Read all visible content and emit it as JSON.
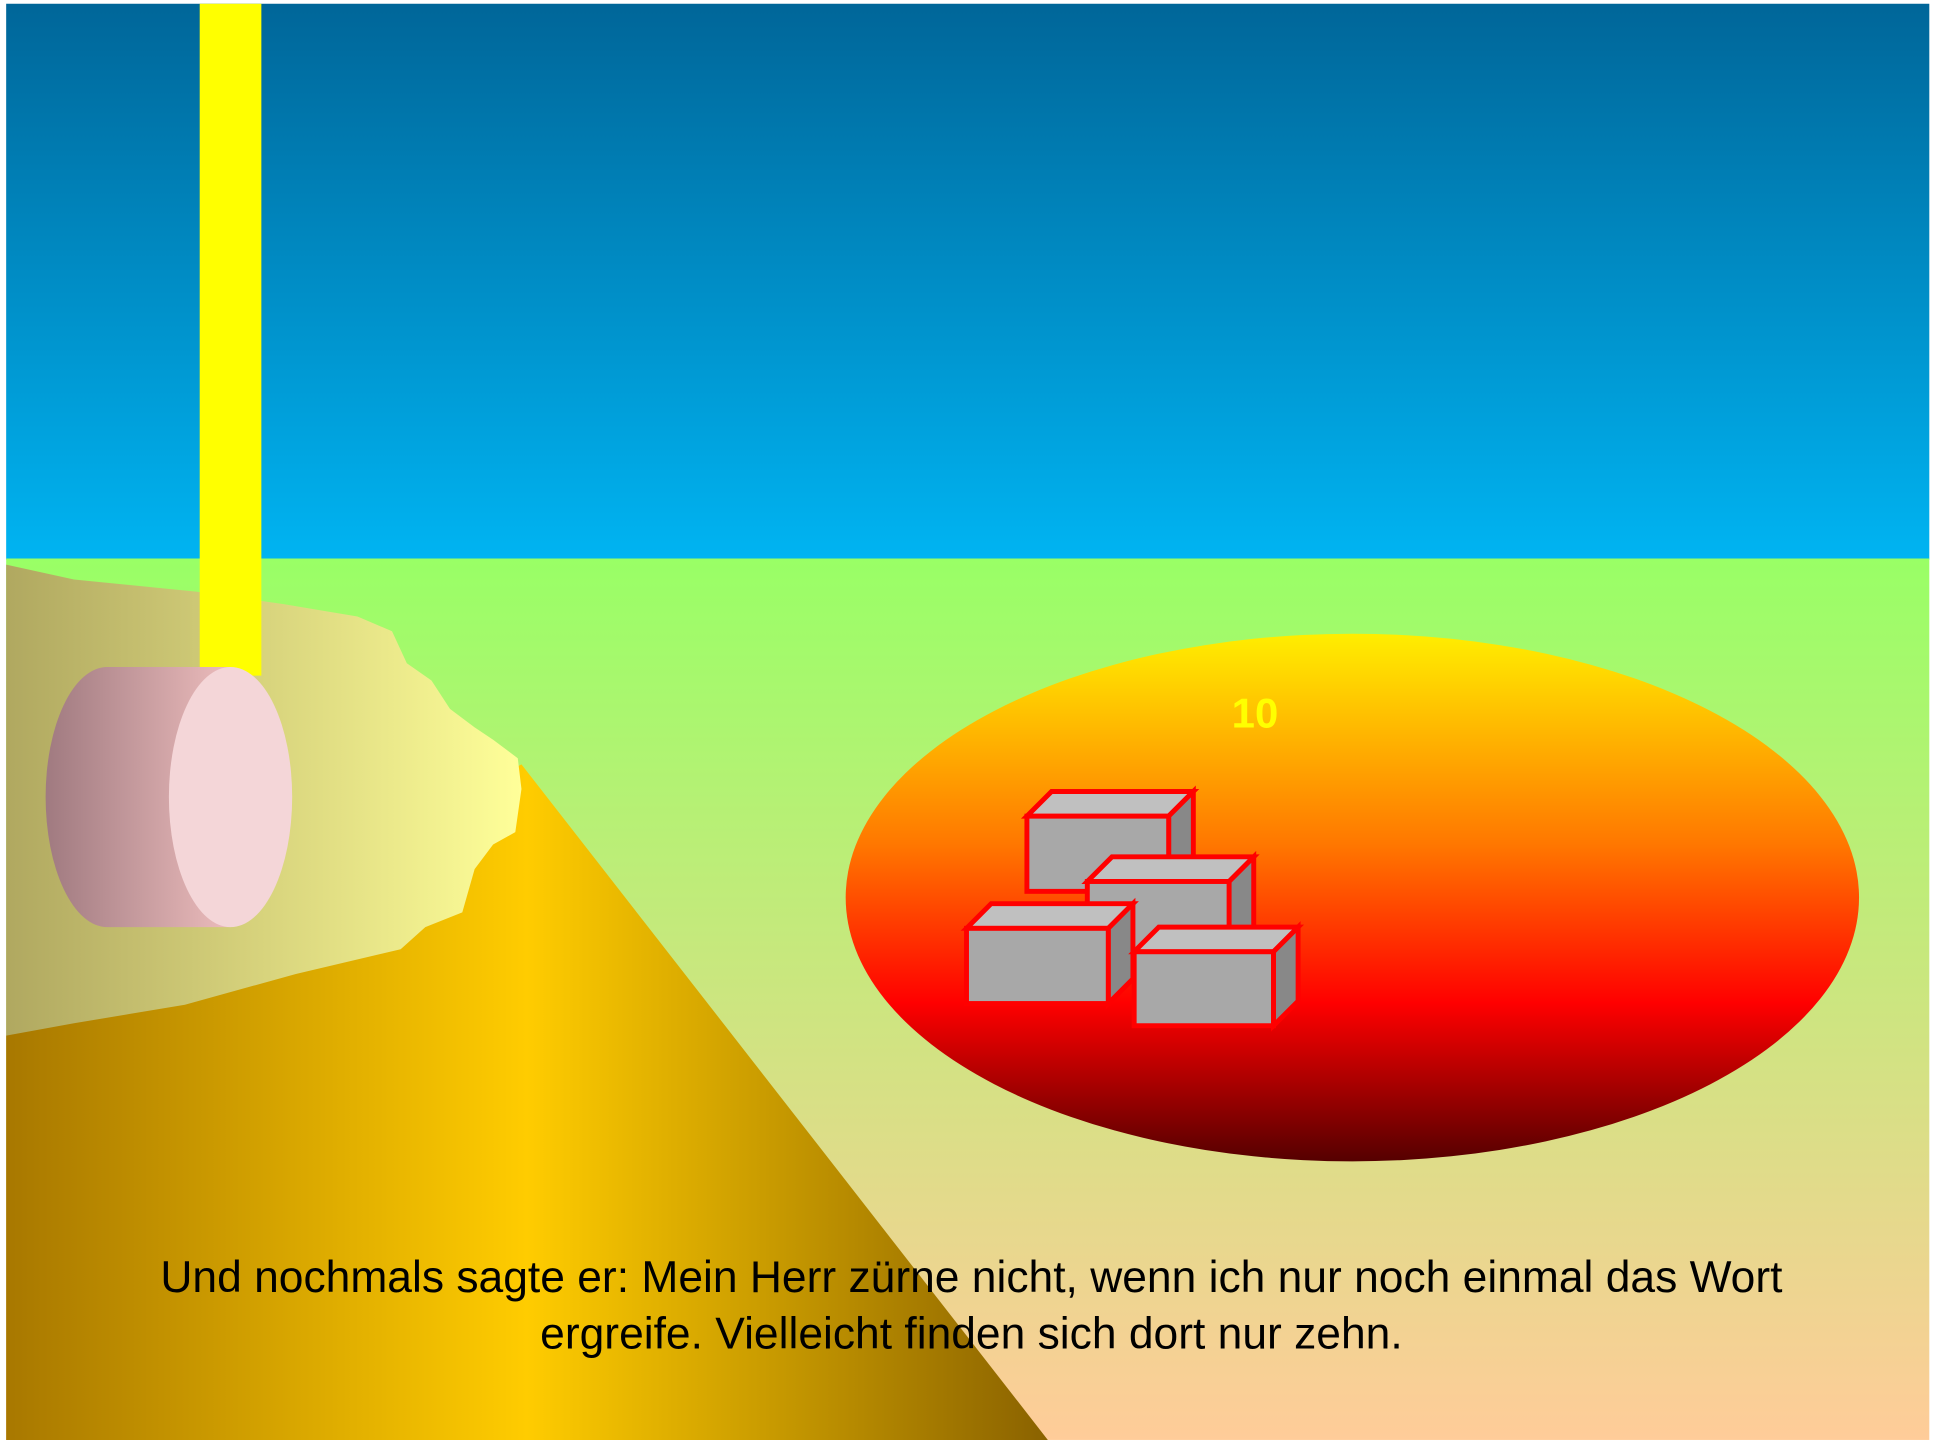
{
  "scene": {
    "count_label": "10",
    "caption": [
      "Und nochmals sagte er: Mein Herr zürne nicht, wenn ich nur noch einmal das Wort",
      "ergreife. Vielleicht finden sich dort nur zehn."
    ]
  }
}
